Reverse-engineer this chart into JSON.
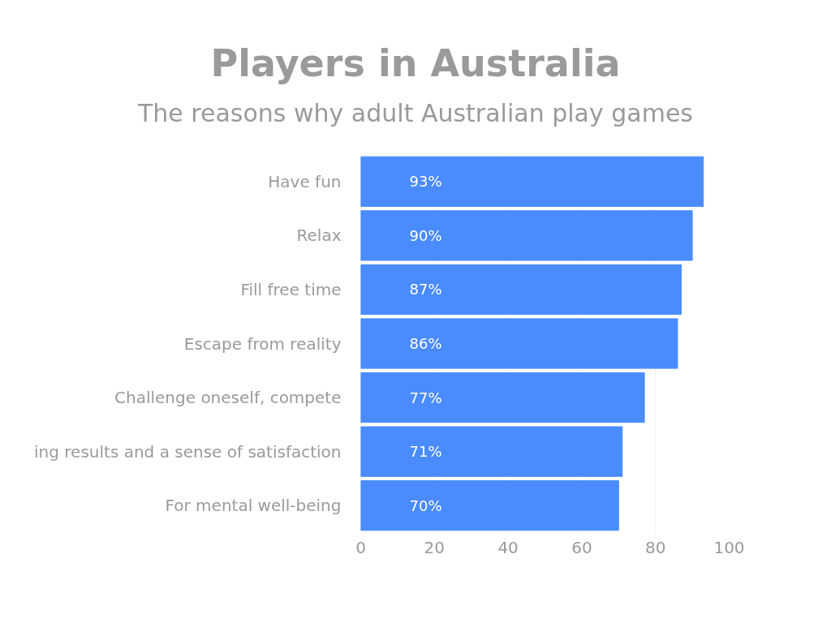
{
  "chart_data": {
    "type": "bar",
    "orientation": "horizontal",
    "title": "Players in Australia",
    "subtitle": "The reasons why adult Australian play games",
    "categories": [
      "Have fun",
      "Relax",
      "Fill free time",
      "Escape from reality",
      "Challenge oneself, compete",
      "ing results and a sense of satisfaction",
      "For mental well-being"
    ],
    "values": [
      93,
      90,
      87,
      86,
      77,
      71,
      70
    ],
    "value_labels": [
      "93%",
      "90%",
      "87%",
      "86%",
      "77%",
      "71%",
      "70%"
    ],
    "color": "#4a8cff",
    "xlim": [
      0,
      100
    ],
    "xticks": [
      0,
      20,
      40,
      60,
      80,
      100
    ],
    "grid": "x"
  }
}
